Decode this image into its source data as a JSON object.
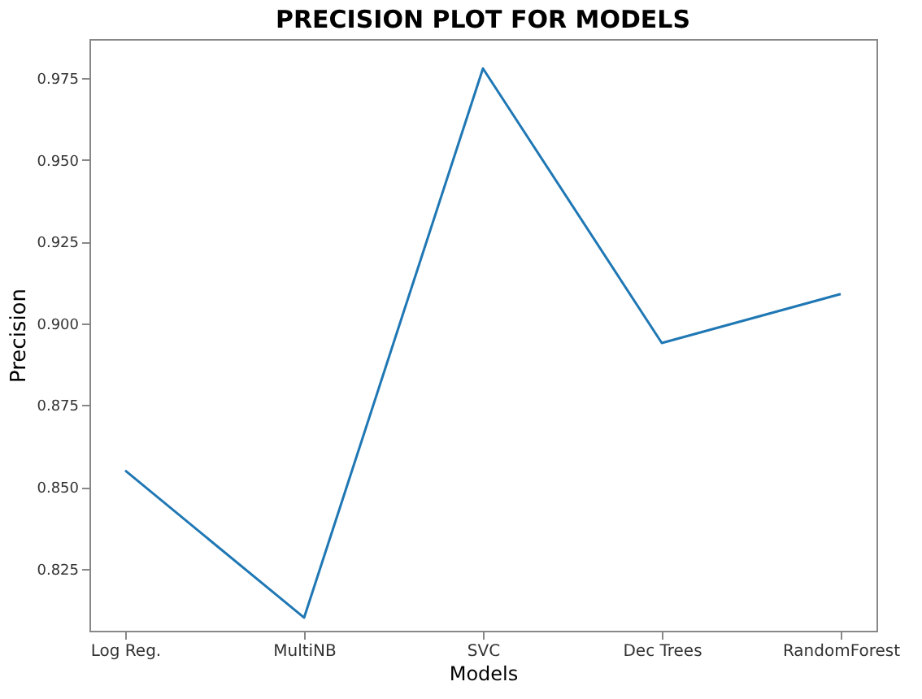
{
  "chart_data": {
    "type": "line",
    "title": "PRECISION PLOT FOR MODELS",
    "xlabel": "Models",
    "ylabel": "Precision",
    "categories": [
      "Log Reg.",
      "MultiNB",
      "SVC",
      "Dec Trees",
      "RandomForest"
    ],
    "series": [
      {
        "color": "#1f77b4",
        "values": [
          0.855,
          0.81,
          0.978,
          0.894,
          0.909
        ]
      }
    ],
    "ylim": [
      0.806,
      0.987
    ],
    "yticks": [
      0.825,
      {
        "value": 0.85,
        "label": "0.850"
      },
      0.875,
      {
        "value": 0.9,
        "label": "0.900"
      },
      0.925,
      {
        "value": 0.95,
        "label": "0.950"
      },
      0.975
    ],
    "grid": false,
    "marker": "none",
    "line_style": "solid"
  }
}
